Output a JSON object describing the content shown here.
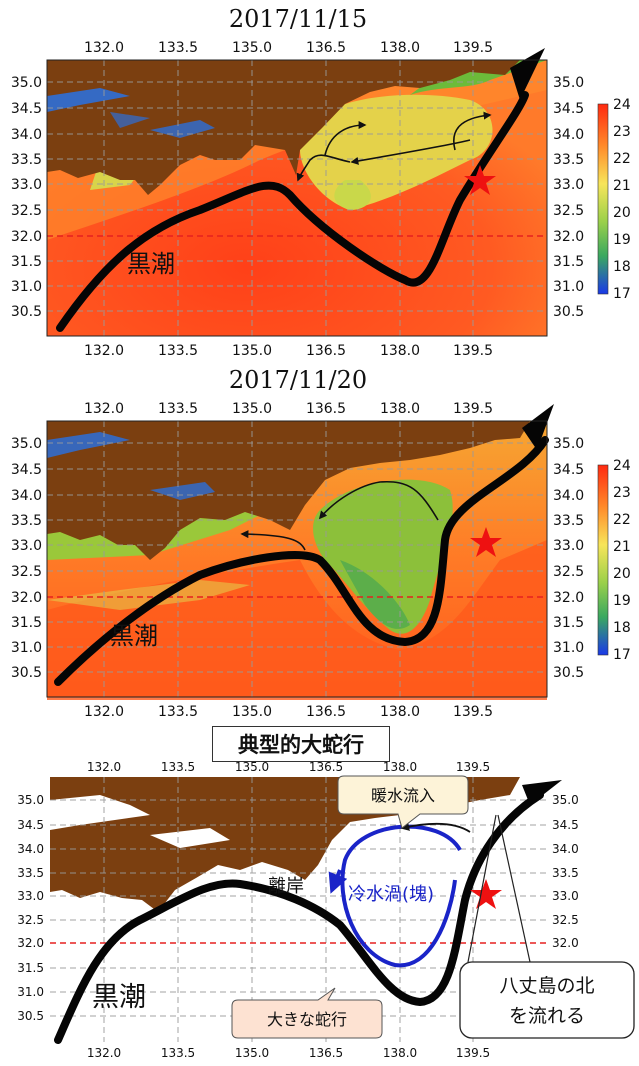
{
  "panels": [
    {
      "date": "2017/11/15",
      "kuroshio_label": "黒潮"
    },
    {
      "date": "2017/11/20",
      "kuroshio_label": "黒潮"
    }
  ],
  "lon_ticks": [
    "132.0",
    "133.5",
    "135.0",
    "136.5",
    "138.0",
    "139.5"
  ],
  "lat_ticks": [
    "35.0",
    "34.5",
    "34.0",
    "33.5",
    "33.0",
    "32.5",
    "32.0",
    "31.5",
    "31.0",
    "30.5"
  ],
  "colorbar_ticks": [
    "24",
    "23",
    "22",
    "21",
    "20",
    "19",
    "18",
    "17"
  ],
  "colors": {
    "land": "#7b3f10",
    "warm": "#ff4a1e",
    "mid": "#f4b93a",
    "cool": "#7fc03a",
    "cold": "#2d6fd8",
    "star": "#ee1111",
    "cold_eddy": "#1a24c8"
  },
  "schematic": {
    "title": "典型的大蛇行",
    "kuroshio_label": "黒潮",
    "warm_inflow": "暖水流入",
    "cold_eddy": "冷水渦(塊)",
    "offshore": "離岸",
    "large_meander": "大きな蛇行",
    "hachijo_line1": "八丈島の北",
    "hachijo_line2": "を流れる"
  }
}
